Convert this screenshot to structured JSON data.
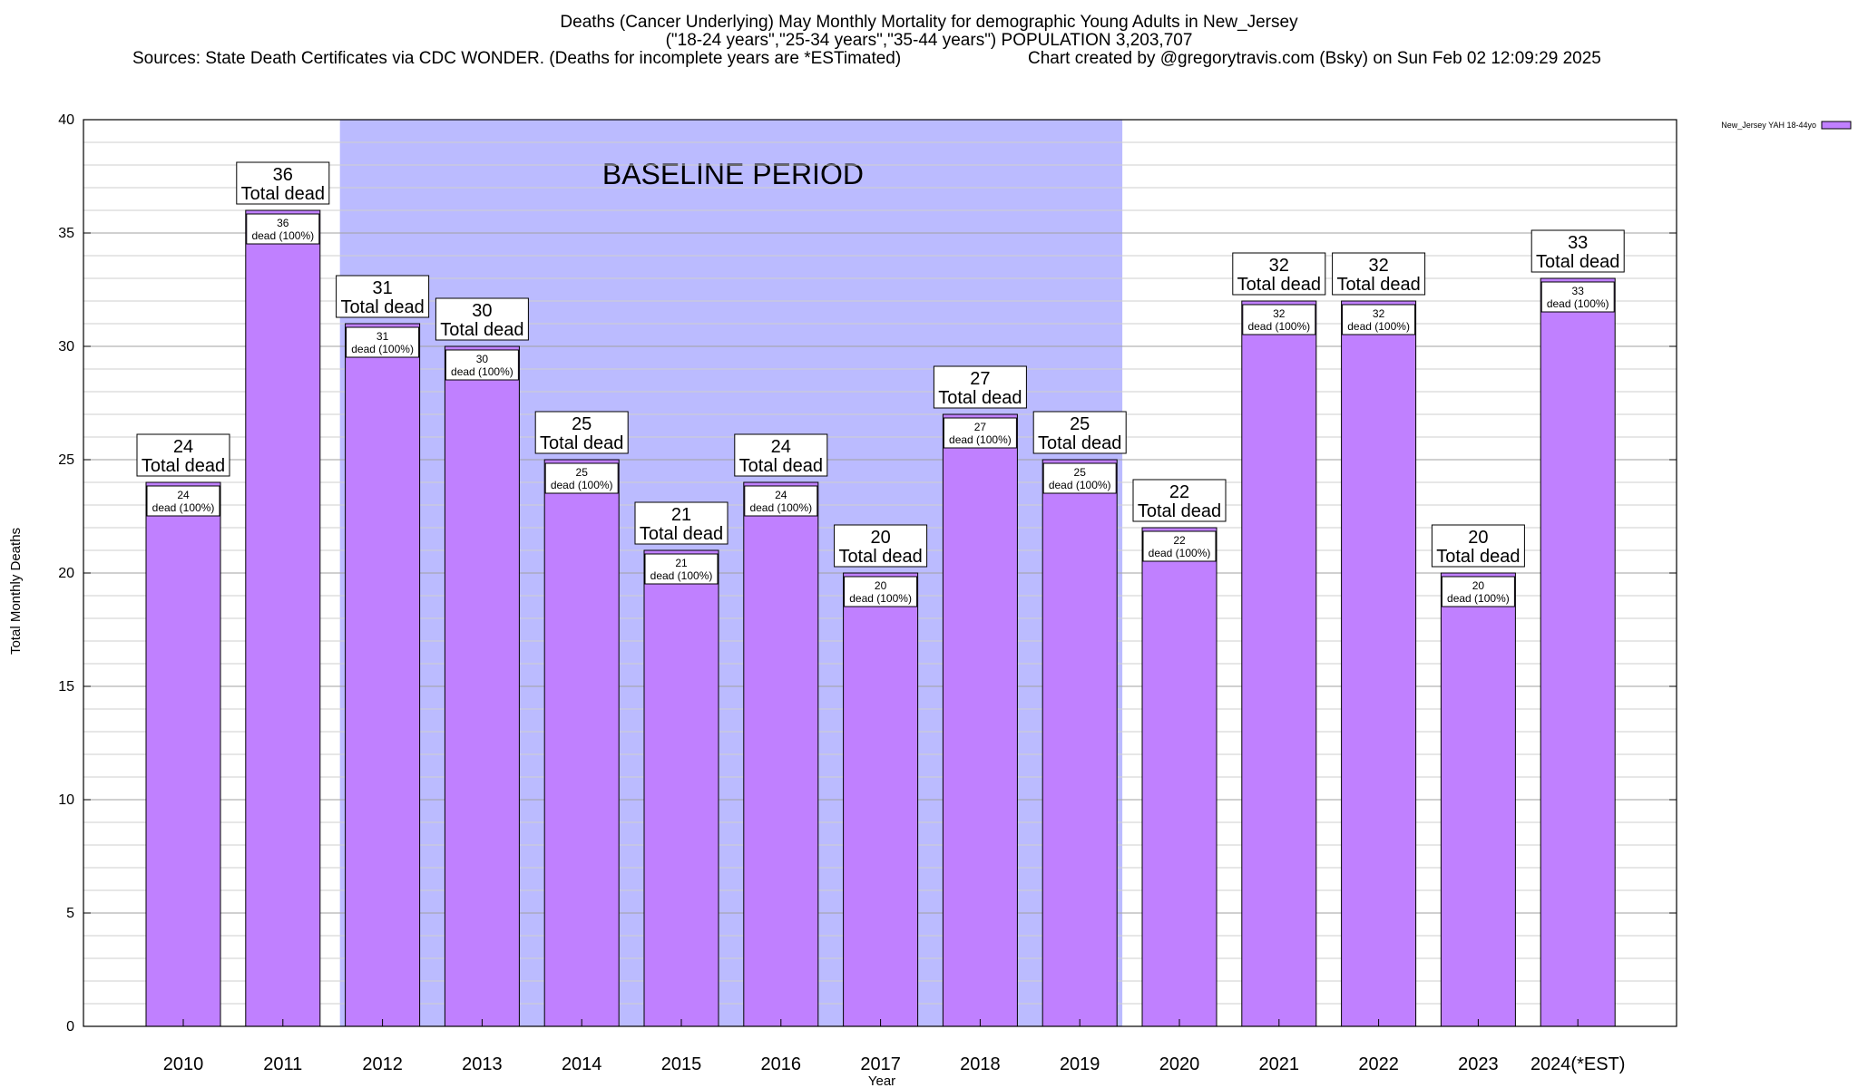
{
  "header": {
    "title_line1": "Deaths (Cancer Underlying) May Monthly Mortality for demographic Young Adults in New_Jersey",
    "title_line2": "(\"18-24 years\",\"25-34 years\",\"35-44 years\") POPULATION 3,203,707",
    "sources": "Sources: State Death Certificates via CDC WONDER. (Deaths for incomplete years are *ESTimated)",
    "credit": "Chart created by @gregorytravis.com (Bsky) on Sun Feb 02 12:09:29 2025"
  },
  "chart_data": {
    "type": "bar",
    "categories": [
      "2010",
      "2011",
      "2012",
      "2013",
      "2014",
      "2015",
      "2016",
      "2017",
      "2018",
      "2019",
      "2020",
      "2021",
      "2022",
      "2023",
      "2024(*EST)"
    ],
    "series": [
      {
        "name": "New_Jersey YAH 18-44yo",
        "values": [
          24,
          36,
          31,
          30,
          25,
          21,
          24,
          20,
          27,
          25,
          22,
          32,
          32,
          20,
          33
        ],
        "color": "#c080ff"
      }
    ],
    "xlabel": "Year",
    "ylabel": "Total Monthly Deaths",
    "ylim": [
      0,
      40
    ],
    "yticks": [
      "0",
      "5",
      "10",
      "15",
      "20",
      "25",
      "30",
      "35",
      "40"
    ],
    "grid": true,
    "legend_position": "top-right",
    "total_label_suffix": "Total dead",
    "inner_label_suffix": "dead (100%)",
    "annotation": {
      "text": "BASELINE PERIOD",
      "from_category": "2012",
      "to_category": "2019",
      "color": "#bbbbff"
    }
  }
}
